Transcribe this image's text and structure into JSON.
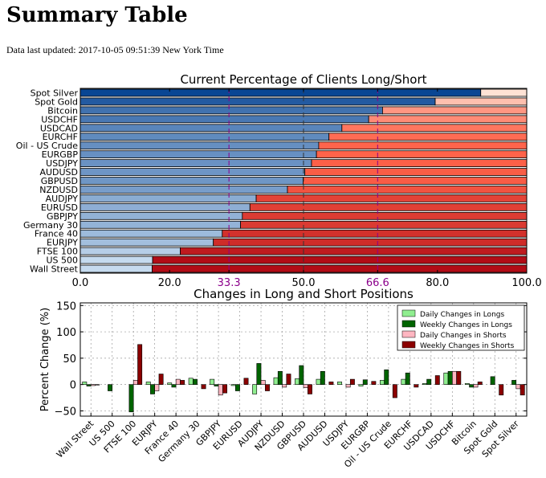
{
  "page": {
    "title": "Summary Table",
    "last_updated": "Data last updated: 2017-10-05 09:51:39 New York Time"
  },
  "chart_data": [
    {
      "type": "bar",
      "orientation": "horizontal-stacked",
      "title": "Current Percentage of Clients Long/Short",
      "categories": [
        "Spot Silver",
        "Spot Gold",
        "Bitcoin",
        "USDCHF",
        "USDCAD",
        "EURCHF",
        "Oil - US Crude",
        "EURGBP",
        "USDJPY",
        "AUDUSD",
        "GBPUSD",
        "NZDUSD",
        "AUDJPY",
        "EURUSD",
        "GBPJPY",
        "Germany 30",
        "France 40",
        "EURJPY",
        "FTSE 100",
        "US 500",
        "Wall Street"
      ],
      "series": [
        {
          "values": [
            89.7,
            79.5,
            67.7,
            64.6,
            58.6,
            55.7,
            53.4,
            52.9,
            51.8,
            50.3,
            49.9,
            46.4,
            39.4,
            38.0,
            36.3,
            35.9,
            31.8,
            29.8,
            22.4,
            16.2,
            16.1
          ]
        },
        {
          "values": [
            10.3,
            20.5,
            32.3,
            35.4,
            41.4,
            44.3,
            46.6,
            47.1,
            48.2,
            49.7,
            50.1,
            53.6,
            60.6,
            62.0,
            63.7,
            64.1,
            68.2,
            70.2,
            77.6,
            83.8,
            83.9
          ]
        }
      ],
      "xlim": [
        0,
        100
      ],
      "xticks": [
        "0.0",
        "20.0",
        "33.3",
        "50.0",
        "66.6",
        "80.0",
        "100.0"
      ],
      "reference_lines": [
        33.3,
        50.0,
        66.6
      ]
    },
    {
      "type": "bar",
      "title": "Changes in Long and Short Positions",
      "ylabel": "Percent Change (%)",
      "ylim": [
        -60,
        155
      ],
      "yticks": [
        "150",
        "100",
        "50",
        "0",
        "−50"
      ],
      "legend": "top-right",
      "categories": [
        "Wall Street",
        "US 500",
        "FTSE 100",
        "EURJPY",
        "France 40",
        "Germany 30",
        "GBPJPY",
        "EURUSD",
        "AUDJPY",
        "NZDUSD",
        "GBPUSD",
        "AUDUSD",
        "USDJPY",
        "EURGBP",
        "Oil - US Crude",
        "EURCHF",
        "USDCAD",
        "USDCHF",
        "Bitcoin",
        "Spot Gold",
        "Spot Silver"
      ],
      "series": [
        {
          "name": "Daily Changes in Longs",
          "color": "#90ee90",
          "values": [
            5,
            0,
            0,
            5,
            3,
            12,
            10,
            -2,
            -18,
            13,
            11,
            10,
            5,
            -3,
            8,
            10,
            2,
            22,
            2,
            0,
            0
          ]
        },
        {
          "name": "Weekly Changes in Longs",
          "color": "#006400",
          "values": [
            -3,
            -12,
            -52,
            -18,
            -5,
            10,
            -3,
            -12,
            40,
            25,
            36,
            25,
            0,
            9,
            28,
            22,
            10,
            25,
            -5,
            15,
            8
          ]
        },
        {
          "name": "Daily Changes in Shorts",
          "color": "#ffb6c1",
          "values": [
            -2,
            0,
            8,
            -12,
            10,
            0,
            -20,
            0,
            8,
            -5,
            -6,
            0,
            -5,
            0,
            0,
            0,
            0,
            25,
            -5,
            0,
            -8
          ]
        },
        {
          "name": "Weekly Changes in Shorts",
          "color": "#8b0000",
          "values": [
            -1,
            0,
            76,
            20,
            8,
            -8,
            -16,
            12,
            -12,
            20,
            -18,
            5,
            10,
            6,
            -25,
            -5,
            17,
            25,
            5,
            -20,
            -20
          ]
        }
      ]
    }
  ]
}
